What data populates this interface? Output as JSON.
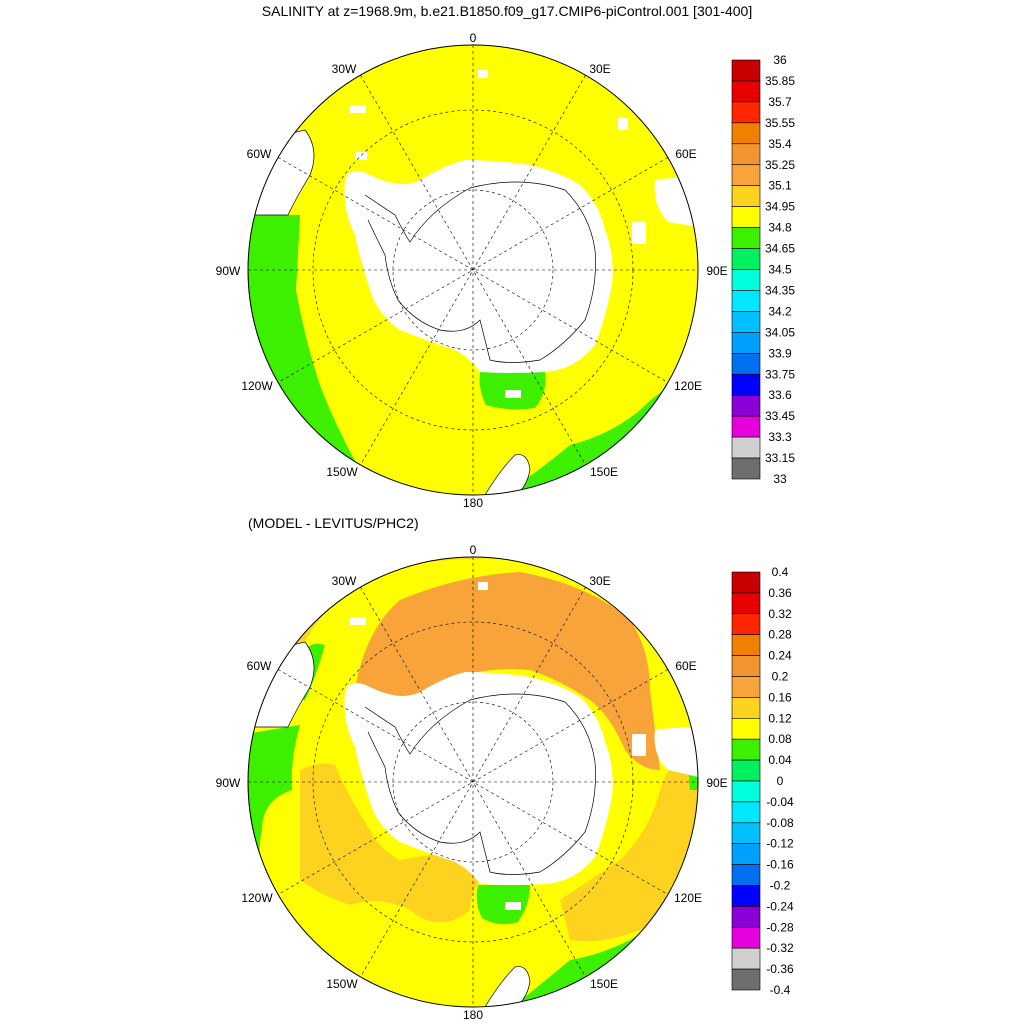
{
  "chart_data": [
    {
      "type": "heatmap",
      "title": "SALINITY at z=1968.9m, b.e21.B1850.f09_g17.CMIP6-piControl.001 [301-400]",
      "projection": "south-polar-stereographic",
      "lon_labels": [
        "0",
        "30E",
        "60E",
        "90E",
        "120E",
        "150E",
        "180",
        "150W",
        "120W",
        "90W",
        "60W",
        "30W"
      ],
      "colorbar": {
        "labels": [
          "36",
          "35.85",
          "35.7",
          "35.55",
          "35.4",
          "35.25",
          "35.1",
          "34.95",
          "34.8",
          "34.65",
          "34.5",
          "34.35",
          "34.2",
          "34.05",
          "33.9",
          "33.75",
          "33.6",
          "33.45",
          "33.3",
          "33.15",
          "33"
        ],
        "colors": [
          "#c80000",
          "#e60000",
          "#ff2600",
          "#f08000",
          "#f29530",
          "#f8a43a",
          "#fdd31f",
          "#ffff00",
          "#3cf000",
          "#00f060",
          "#00ffdc",
          "#00e8ff",
          "#00c0ff",
          "#00a0ff",
          "#0070f0",
          "#0000ff",
          "#8a00d6",
          "#e600dc",
          "#d0d0d0",
          "#6e6e6e"
        ]
      },
      "dominant_values": {
        "ocean_interior": "34.8-34.95",
        "pacific_east_margin": "34.65-34.8",
        "ross_sea": "34.65-34.8"
      }
    },
    {
      "type": "heatmap",
      "title": "(MODEL - LEVITUS/PHC2)",
      "projection": "south-polar-stereographic",
      "lon_labels": [
        "0",
        "30E",
        "60E",
        "90E",
        "120E",
        "150E",
        "180",
        "150W",
        "120W",
        "90W",
        "60W",
        "30W"
      ],
      "colorbar": {
        "labels": [
          "0.4",
          "0.36",
          "0.32",
          "0.28",
          "0.24",
          "0.2",
          "0.16",
          "0.12",
          "0.08",
          "0.04",
          "0",
          "-0.04",
          "-0.08",
          "-0.12",
          "-0.16",
          "-0.2",
          "-0.24",
          "-0.28",
          "-0.32",
          "-0.36",
          "-0.4"
        ],
        "colors": [
          "#c80000",
          "#e60000",
          "#ff2600",
          "#f08000",
          "#f29530",
          "#f8a43a",
          "#fdd31f",
          "#ffff00",
          "#3cf000",
          "#00f060",
          "#00ffdc",
          "#00e8ff",
          "#00c0ff",
          "#00a0ff",
          "#0070f0",
          "#0000ff",
          "#8a00d6",
          "#e600dc",
          "#d0d0d0",
          "#6e6e6e"
        ]
      },
      "dominant_values": {
        "atlantic_indian_band": "0.16-0.2",
        "pacific_sector": "0.08-0.16",
        "eastern_margin": "0.04-0.08"
      }
    }
  ],
  "colors": {
    "land": "#ffffff",
    "coast": "#000000",
    "grid": "#000000",
    "yellow": "#ffff00",
    "green": "#3cf000",
    "orange": "#f8a43a",
    "gold": "#fdd31f"
  }
}
